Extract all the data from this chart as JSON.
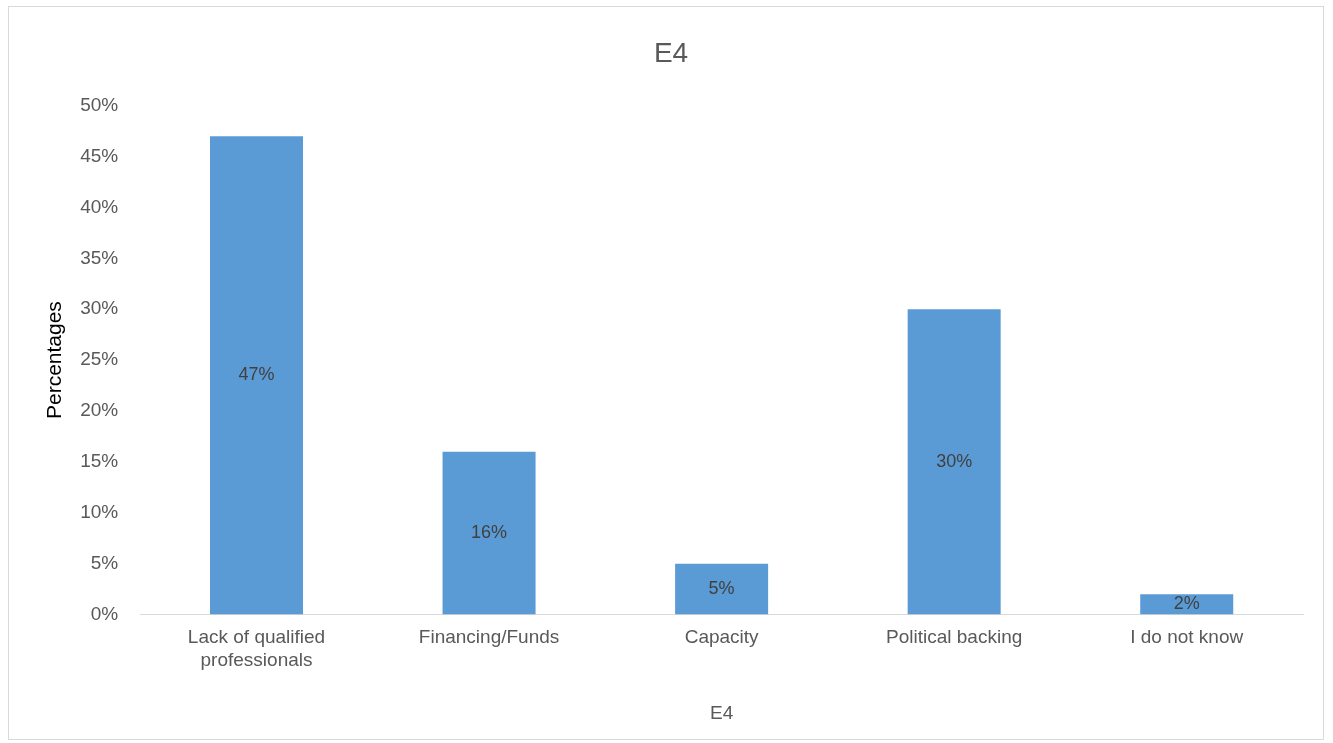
{
  "chart_data": {
    "type": "bar",
    "title": "E4",
    "xlabel": "E4",
    "ylabel": "Percentages",
    "categories": [
      "Lack of qualified professionals",
      "Financing/Funds",
      "Capacity",
      "Political backing",
      "I do not know"
    ],
    "values": [
      47,
      16,
      5,
      30,
      2
    ],
    "value_labels": [
      "47%",
      "16%",
      "5%",
      "30%",
      "2%"
    ],
    "color": "#5b9bd5",
    "ylim": [
      0,
      50
    ],
    "yticks": [
      {
        "value": 0,
        "label": "0%"
      },
      {
        "value": 5,
        "label": "5%"
      },
      {
        "value": 10,
        "label": "10%"
      },
      {
        "value": 15,
        "label": "15%"
      },
      {
        "value": 20,
        "label": "20%"
      },
      {
        "value": 25,
        "label": "25%"
      },
      {
        "value": 30,
        "label": "30%"
      },
      {
        "value": 35,
        "label": "35%"
      },
      {
        "value": 40,
        "label": "40%"
      },
      {
        "value": 45,
        "label": "45%"
      },
      {
        "value": 50,
        "label": "50%"
      }
    ],
    "grid": false,
    "legend": false
  }
}
